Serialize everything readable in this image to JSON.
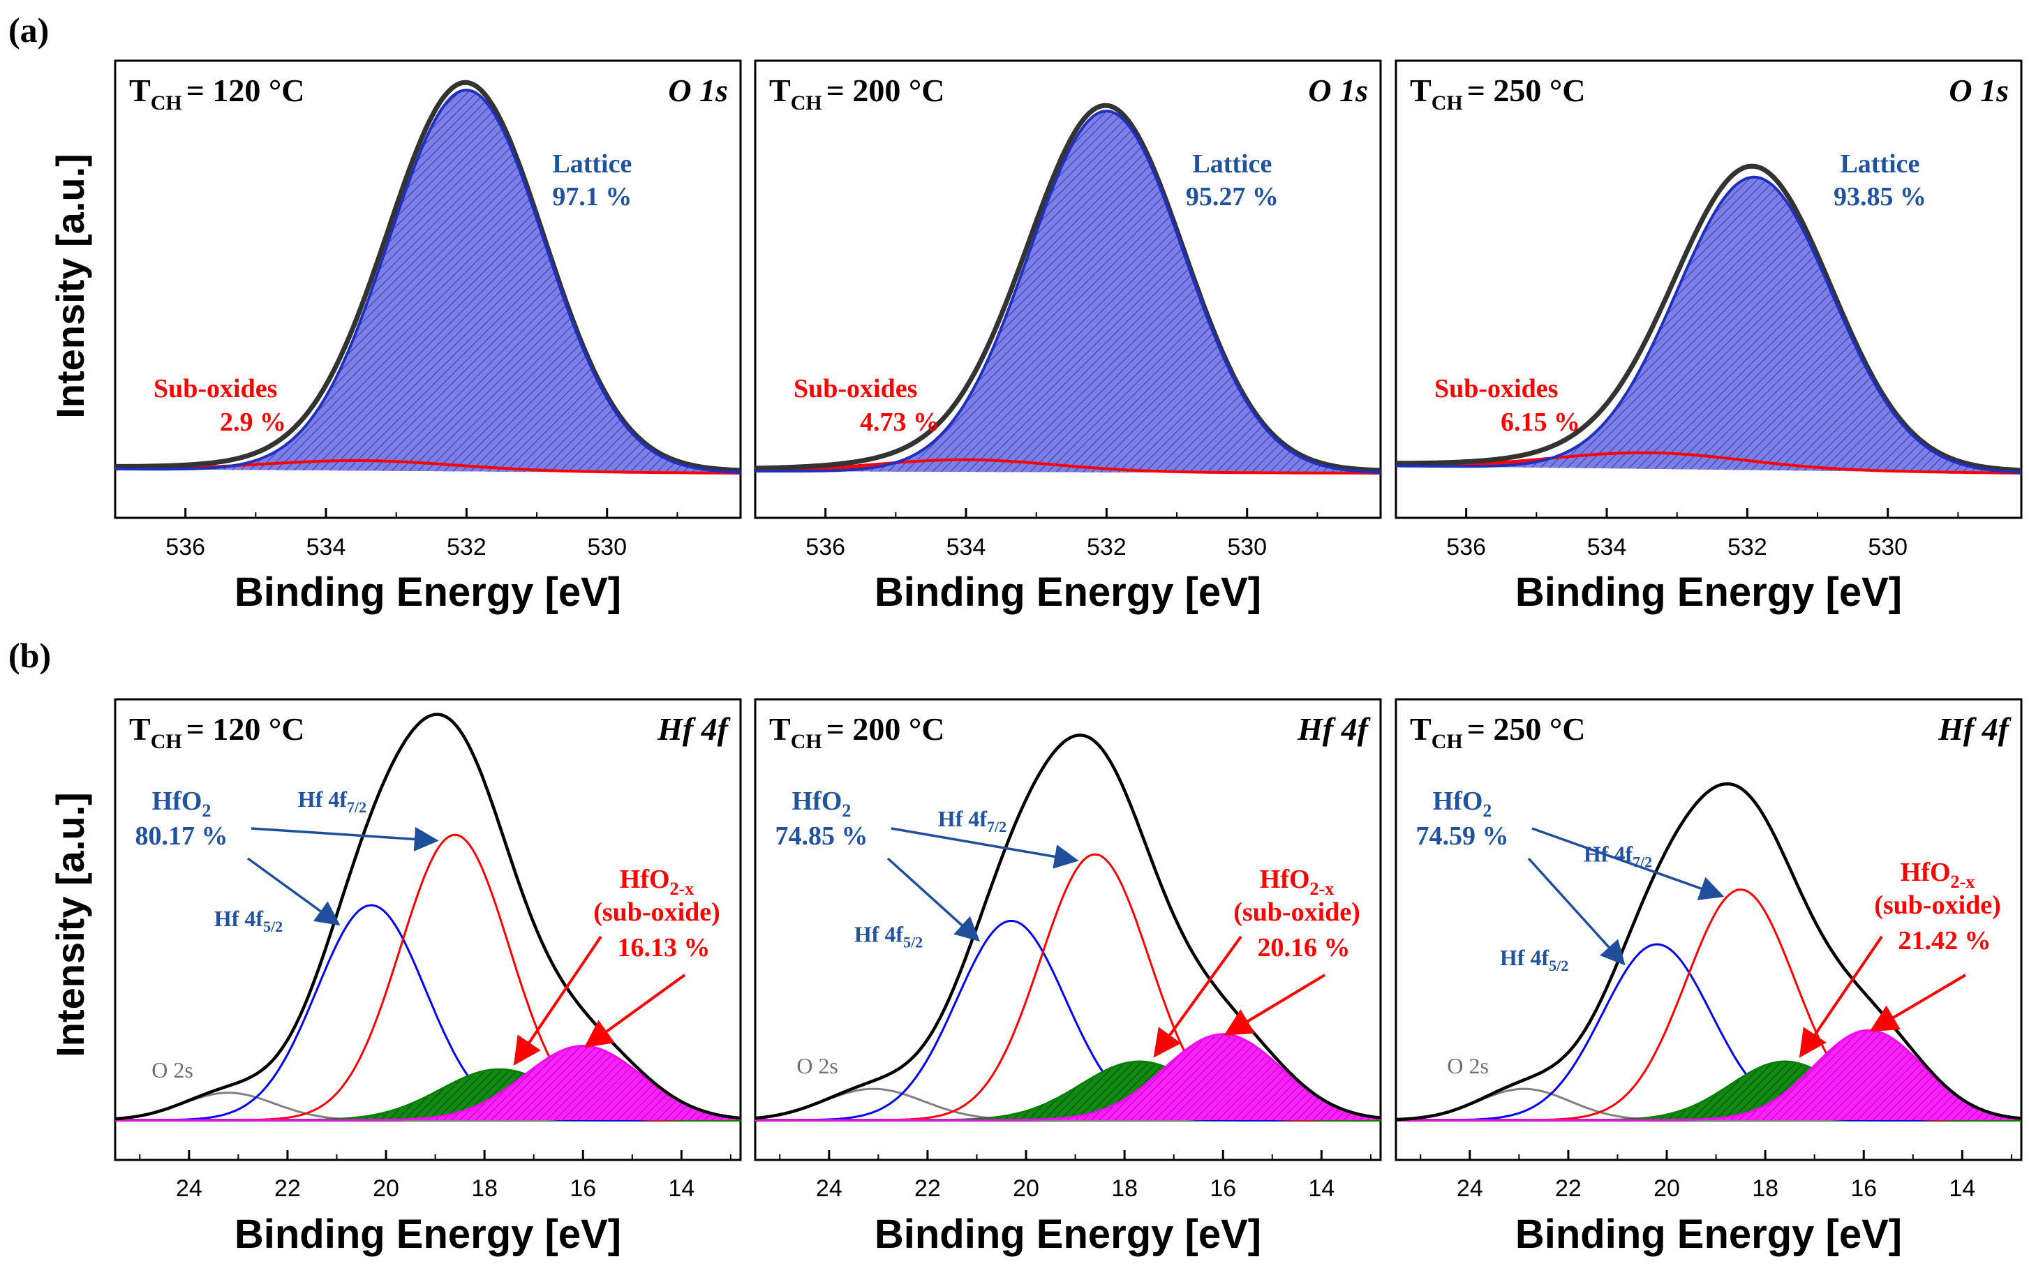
{
  "rows": [
    {
      "label": "(a)",
      "ylabel": "Intensity [a.u.]",
      "xlabel": "Binding Energy [eV]",
      "ticks": [
        536,
        534,
        532,
        530
      ],
      "xlim": [
        537.0,
        528.1
      ],
      "colors": {
        "lattice": "#1f2fbf",
        "lattice_fill": "#7b7fe6",
        "sub": "#ff0000",
        "envelope": "#000000"
      }
    },
    {
      "label": "(b)",
      "ylabel": "Intensity [a.u.]",
      "xlabel": "Binding Energy [eV]",
      "ticks": [
        24,
        22,
        20,
        18,
        16,
        14
      ],
      "xlim": [
        25.5,
        12.8
      ],
      "colors": {
        "o2s": "#808080",
        "hf52": "#0000ff",
        "hf72": "#ff0000",
        "sub1": "#008000",
        "sub2": "#ff00ff",
        "envelope": "#000000"
      }
    }
  ],
  "chart_data": [
    {
      "type": "line",
      "title": "T_CH = 120 °C",
      "tag": "O 1s",
      "temp_prefix": "T",
      "temp_sub": "CH",
      "temp_value": "= 120 °C",
      "xlabel": "Binding Energy [eV]",
      "ylabel": "Intensity [a.u.]",
      "xlim": [
        537.0,
        528.1
      ],
      "ylim": [
        0,
        1.05
      ],
      "series": [
        {
          "name": "Lattice",
          "center": 532.0,
          "fwhm": 2.6,
          "height": 0.95
        },
        {
          "name": "Sub-oxides",
          "center": 533.5,
          "fwhm": 3.2,
          "height": 0.025
        }
      ],
      "baseline": [
        0.11,
        0.09
      ],
      "annotations": {
        "lattice_label": "Lattice",
        "lattice_pct": "97.1 %",
        "sub_label": "Sub-oxides",
        "sub_pct": "2.9 %"
      }
    },
    {
      "type": "line",
      "title": "T_CH = 200 °C",
      "tag": "O 1s",
      "temp_prefix": "T",
      "temp_sub": "CH",
      "temp_value": "= 200 °C",
      "xlabel": "Binding Energy [eV]",
      "ylabel": "Intensity [a.u.]",
      "xlim": [
        537.0,
        528.1
      ],
      "ylim": [
        0,
        1.05
      ],
      "series": [
        {
          "name": "Lattice",
          "center": 532.0,
          "fwhm": 2.6,
          "height": 0.9
        },
        {
          "name": "Sub-oxides",
          "center": 534.0,
          "fwhm": 3.0,
          "height": 0.03
        }
      ],
      "baseline": [
        0.1,
        0.09
      ],
      "annotations": {
        "lattice_label": "Lattice",
        "lattice_pct": "95.27 %",
        "sub_label": "Sub-oxides",
        "sub_pct": "4.73 %"
      }
    },
    {
      "type": "line",
      "title": "T_CH = 250 °C",
      "tag": "O 1s",
      "temp_prefix": "T",
      "temp_sub": "CH",
      "temp_value": "= 250 °C",
      "xlabel": "Binding Energy [eV]",
      "ylabel": "Intensity [a.u.]",
      "xlim": [
        537.0,
        528.1
      ],
      "ylim": [
        0,
        1.05
      ],
      "series": [
        {
          "name": "Lattice",
          "center": 531.9,
          "fwhm": 2.6,
          "height": 0.73
        },
        {
          "name": "Sub-oxides",
          "center": 533.4,
          "fwhm": 3.2,
          "height": 0.04
        }
      ],
      "baseline": [
        0.125,
        0.09
      ],
      "annotations": {
        "lattice_label": "Lattice",
        "lattice_pct": "93.85 %",
        "sub_label": "Sub-oxides",
        "sub_pct": "6.15 %"
      }
    },
    {
      "type": "line",
      "title": "T_CH = 120 °C",
      "tag": "Hf 4f",
      "temp_prefix": "T",
      "temp_sub": "CH",
      "temp_value": "= 120 °C",
      "xlabel": "Binding Energy [eV]",
      "ylabel": "Intensity [a.u.]",
      "xlim": [
        25.5,
        12.8
      ],
      "ylim": [
        0,
        1.05
      ],
      "series": [
        {
          "name": "O 2s",
          "center": 23.2,
          "fwhm": 2.2,
          "height": 0.07
        },
        {
          "name": "Hf 4f5/2",
          "center": 20.3,
          "fwhm": 2.6,
          "height": 0.55
        },
        {
          "name": "Hf 4f7/2",
          "center": 18.6,
          "fwhm": 2.6,
          "height": 0.73
        },
        {
          "name": "Sub-oxide 1",
          "center": 17.7,
          "fwhm": 2.8,
          "height": 0.13
        },
        {
          "name": "Sub-oxide 2",
          "center": 16.0,
          "fwhm": 2.8,
          "height": 0.19
        }
      ],
      "annotations": {
        "hfo2_label": "HfO",
        "hfo2_sub": "2",
        "hfo2_pct": "80.17 %",
        "hf72_label": "Hf 4f",
        "hf72_sub": "7/2",
        "hf52_label": "Hf 4f",
        "hf52_sub": "5/2",
        "sub_label": "HfO",
        "sub_subscript": "2-x",
        "sub_desc": "(sub-oxide)",
        "sub_pct": "16.13 %",
        "o2s_label": "O 2s"
      }
    },
    {
      "type": "line",
      "title": "T_CH = 200 °C",
      "tag": "Hf 4f",
      "temp_prefix": "T",
      "temp_sub": "CH",
      "temp_value": "= 200 °C",
      "xlabel": "Binding Energy [eV]",
      "ylabel": "Intensity [a.u.]",
      "xlim": [
        25.5,
        12.8
      ],
      "ylim": [
        0,
        1.05
      ],
      "series": [
        {
          "name": "O 2s",
          "center": 23.1,
          "fwhm": 2.4,
          "height": 0.08
        },
        {
          "name": "Hf 4f5/2",
          "center": 20.3,
          "fwhm": 2.6,
          "height": 0.51
        },
        {
          "name": "Hf 4f7/2",
          "center": 18.6,
          "fwhm": 2.6,
          "height": 0.68
        },
        {
          "name": "Sub-oxide 1",
          "center": 17.7,
          "fwhm": 2.8,
          "height": 0.15
        },
        {
          "name": "Sub-oxide 2",
          "center": 16.0,
          "fwhm": 2.8,
          "height": 0.22
        }
      ],
      "annotations": {
        "hfo2_label": "HfO",
        "hfo2_sub": "2",
        "hfo2_pct": "74.85 %",
        "hf72_label": "Hf 4f",
        "hf72_sub": "7/2",
        "hf52_label": "Hf 4f",
        "hf52_sub": "5/2",
        "sub_label": "HfO",
        "sub_subscript": "2-x",
        "sub_desc": "(sub-oxide)",
        "sub_pct": "20.16 %",
        "o2s_label": "O 2s"
      }
    },
    {
      "type": "line",
      "title": "T_CH = 250 °C",
      "tag": "Hf 4f",
      "temp_prefix": "T",
      "temp_sub": "CH",
      "temp_value": "= 250 °C",
      "xlabel": "Binding Energy [eV]",
      "ylabel": "Intensity [a.u.]",
      "xlim": [
        25.5,
        12.8
      ],
      "ylim": [
        0,
        1.05
      ],
      "series": [
        {
          "name": "O 2s",
          "center": 22.9,
          "fwhm": 2.2,
          "height": 0.08
        },
        {
          "name": "Hf 4f5/2",
          "center": 20.2,
          "fwhm": 2.6,
          "height": 0.45
        },
        {
          "name": "Hf 4f7/2",
          "center": 18.5,
          "fwhm": 2.6,
          "height": 0.59
        },
        {
          "name": "Sub-oxide 1",
          "center": 17.6,
          "fwhm": 2.6,
          "height": 0.15
        },
        {
          "name": "Sub-oxide 2",
          "center": 15.9,
          "fwhm": 2.6,
          "height": 0.23
        }
      ],
      "annotations": {
        "hfo2_label": "HfO",
        "hfo2_sub": "2",
        "hfo2_pct": "74.59 %",
        "hf72_label": "Hf 4f",
        "hf72_sub": "7/2",
        "hf52_label": "Hf 4f",
        "hf52_sub": "5/2",
        "sub_label": "HfO",
        "sub_subscript": "2-x",
        "sub_desc": "(sub-oxide)",
        "sub_pct": "21.42 %",
        "o2s_label": "O 2s"
      }
    }
  ]
}
